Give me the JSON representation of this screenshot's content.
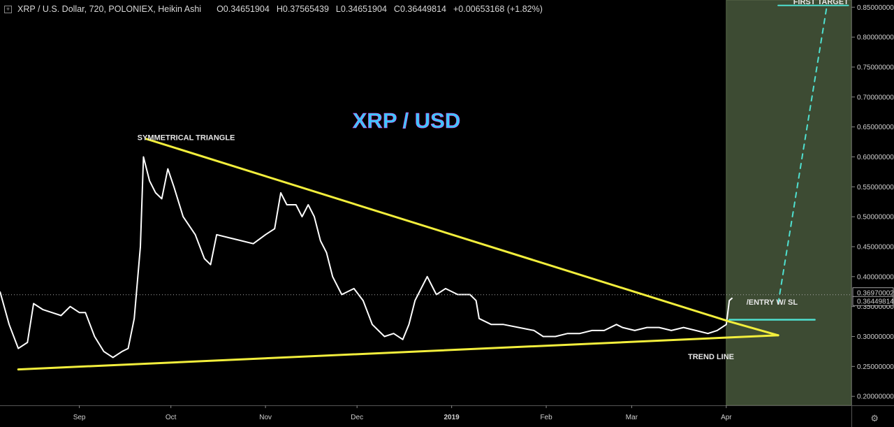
{
  "header": {
    "symbol": "XRP / U.S. Dollar, 720, POLONIEX, Heikin Ashi",
    "open": "O0.34651904",
    "high": "H0.37565439",
    "low": "L0.34651904",
    "close": "C0.36449814",
    "change": "+0.00653168 (+1.82%)"
  },
  "colors": {
    "background": "#000000",
    "forecast_zone": "#3d4b33",
    "price": "#ffffff",
    "trend_lines": "#f2ee3c",
    "target_lines": "#4fe0d0",
    "title": "#3cc8ff"
  },
  "chart_data": {
    "type": "line",
    "title": "XRP / USD",
    "price_axis": {
      "ylim": [
        0.185,
        0.862
      ],
      "ticks": [
        "0.20000000",
        "0.25000000",
        "0.30000000",
        "0.35000000",
        "0.40000000",
        "0.45000000",
        "0.50000000",
        "0.55000000",
        "0.60000000",
        "0.65000000",
        "0.70000000",
        "0.75000000",
        "0.80000000",
        "0.85000000"
      ],
      "tick_values": [
        0.2,
        0.25,
        0.3,
        0.35,
        0.4,
        0.45,
        0.5,
        0.55,
        0.6,
        0.65,
        0.7,
        0.75,
        0.8,
        0.85
      ],
      "price_labels": [
        {
          "value": 0.3697,
          "text": "0.36970002",
          "style": "outline"
        },
        {
          "value": 0.3645,
          "text": "0.36449814",
          "style": "outline"
        }
      ]
    },
    "time_axis": {
      "xlim": [
        "2018-08-06",
        "2019-05-12"
      ],
      "ticks": [
        {
          "date": "2018-09-01",
          "label": "Sep",
          "bold": false
        },
        {
          "date": "2018-10-01",
          "label": "Oct",
          "bold": false
        },
        {
          "date": "2018-11-01",
          "label": "Nov",
          "bold": false
        },
        {
          "date": "2018-12-01",
          "label": "Dec",
          "bold": false
        },
        {
          "date": "2019-01-01",
          "label": "2019",
          "bold": true
        },
        {
          "date": "2019-02-01",
          "label": "Feb",
          "bold": false
        },
        {
          "date": "2019-03-01",
          "label": "Mar",
          "bold": false
        },
        {
          "date": "2019-04-01",
          "label": "Apr",
          "bold": false
        }
      ]
    },
    "series": [
      {
        "values_xy": [
          [
            "2018-08-06",
            0.375
          ],
          [
            "2018-08-09",
            0.32
          ],
          [
            "2018-08-12",
            0.28
          ],
          [
            "2018-08-15",
            0.29
          ],
          [
            "2018-08-17",
            0.355
          ],
          [
            "2018-08-20",
            0.345
          ],
          [
            "2018-08-23",
            0.34
          ],
          [
            "2018-08-26",
            0.335
          ],
          [
            "2018-08-29",
            0.35
          ],
          [
            "2018-09-01",
            0.34
          ],
          [
            "2018-09-03",
            0.34
          ],
          [
            "2018-09-06",
            0.3
          ],
          [
            "2018-09-09",
            0.275
          ],
          [
            "2018-09-12",
            0.265
          ],
          [
            "2018-09-15",
            0.275
          ],
          [
            "2018-09-17",
            0.28
          ],
          [
            "2018-09-19",
            0.33
          ],
          [
            "2018-09-21",
            0.45
          ],
          [
            "2018-09-22",
            0.6
          ],
          [
            "2018-09-24",
            0.56
          ],
          [
            "2018-09-26",
            0.54
          ],
          [
            "2018-09-28",
            0.53
          ],
          [
            "2018-09-30",
            0.58
          ],
          [
            "2018-10-02",
            0.55
          ],
          [
            "2018-10-05",
            0.5
          ],
          [
            "2018-10-09",
            0.47
          ],
          [
            "2018-10-12",
            0.43
          ],
          [
            "2018-10-14",
            0.42
          ],
          [
            "2018-10-16",
            0.47
          ],
          [
            "2018-10-20",
            0.465
          ],
          [
            "2018-10-24",
            0.46
          ],
          [
            "2018-10-28",
            0.455
          ],
          [
            "2018-11-01",
            0.47
          ],
          [
            "2018-11-04",
            0.48
          ],
          [
            "2018-11-06",
            0.54
          ],
          [
            "2018-11-08",
            0.52
          ],
          [
            "2018-11-11",
            0.52
          ],
          [
            "2018-11-13",
            0.5
          ],
          [
            "2018-11-15",
            0.52
          ],
          [
            "2018-11-17",
            0.5
          ],
          [
            "2018-11-19",
            0.46
          ],
          [
            "2018-11-21",
            0.44
          ],
          [
            "2018-11-23",
            0.4
          ],
          [
            "2018-11-26",
            0.37
          ],
          [
            "2018-11-30",
            0.38
          ],
          [
            "2018-12-03",
            0.36
          ],
          [
            "2018-12-06",
            0.32
          ],
          [
            "2018-12-10",
            0.3
          ],
          [
            "2018-12-13",
            0.305
          ],
          [
            "2018-12-16",
            0.295
          ],
          [
            "2018-12-18",
            0.32
          ],
          [
            "2018-12-20",
            0.36
          ],
          [
            "2018-12-22",
            0.38
          ],
          [
            "2018-12-24",
            0.4
          ],
          [
            "2018-12-27",
            0.37
          ],
          [
            "2018-12-30",
            0.38
          ],
          [
            "2019-01-03",
            0.37
          ],
          [
            "2019-01-07",
            0.37
          ],
          [
            "2019-01-09",
            0.36
          ],
          [
            "2019-01-10",
            0.33
          ],
          [
            "2019-01-14",
            0.32
          ],
          [
            "2019-01-18",
            0.32
          ],
          [
            "2019-01-23",
            0.315
          ],
          [
            "2019-01-28",
            0.31
          ],
          [
            "2019-01-31",
            0.3
          ],
          [
            "2019-02-04",
            0.3
          ],
          [
            "2019-02-08",
            0.305
          ],
          [
            "2019-02-12",
            0.305
          ],
          [
            "2019-02-16",
            0.31
          ],
          [
            "2019-02-20",
            0.31
          ],
          [
            "2019-02-24",
            0.32
          ],
          [
            "2019-02-26",
            0.315
          ],
          [
            "2019-03-02",
            0.31
          ],
          [
            "2019-03-06",
            0.315
          ],
          [
            "2019-03-10",
            0.315
          ],
          [
            "2019-03-14",
            0.31
          ],
          [
            "2019-03-18",
            0.315
          ],
          [
            "2019-03-22",
            0.31
          ],
          [
            "2019-03-26",
            0.305
          ],
          [
            "2019-03-29",
            0.31
          ],
          [
            "2019-04-01",
            0.32
          ],
          [
            "2019-04-02",
            0.36
          ],
          [
            "2019-04-03",
            0.3645
          ]
        ]
      }
    ],
    "forecast_zone": {
      "from": "2019-04-01"
    },
    "dotted_price_line": 0.3697,
    "annotations": [
      {
        "text": "SYMMETRICAL TRIANGLE",
        "date": "2018-10-06",
        "price": 0.628
      },
      {
        "text": "TREND LINE",
        "date": "2019-03-27",
        "price": 0.262
      },
      {
        "text": "/ENTRY W/ SL",
        "date": "2019-04-16",
        "price": 0.353
      },
      {
        "text": "FIRST TARGET",
        "date": "2019-05-02",
        "price": 0.855
      }
    ],
    "drawings": {
      "upper_trendline": [
        [
          "2018-09-23",
          0.63
        ],
        [
          "2019-04-02",
          0.325
        ]
      ],
      "lower_trendline": [
        [
          "2018-08-12",
          0.245
        ],
        [
          "2019-04-18",
          0.302
        ]
      ],
      "triangle_close": [
        [
          "2019-04-02",
          0.325
        ],
        [
          "2019-04-18",
          0.302
        ]
      ],
      "entry_line": {
        "from": "2019-04-02",
        "to": "2019-04-30",
        "price": 0.328
      },
      "target_line": {
        "from": "2019-04-18",
        "to": "2019-05-11",
        "price": 0.853
      },
      "target_path": [
        [
          "2019-04-18",
          0.355
        ],
        [
          "2019-05-04",
          0.853
        ]
      ]
    }
  }
}
